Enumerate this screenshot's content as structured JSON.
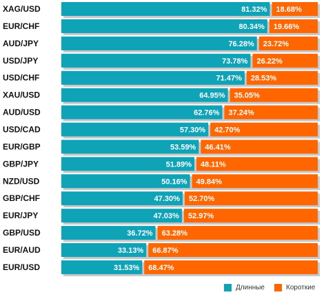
{
  "chart_data": {
    "type": "bar",
    "orientation": "horizontal",
    "stacked": true,
    "categories": [
      "XAG/USD",
      "EUR/CHF",
      "AUD/JPY",
      "USD/JPY",
      "USD/CHF",
      "XAU/USD",
      "AUD/USD",
      "USD/CAD",
      "EUR/GBP",
      "GBP/JPY",
      "NZD/USD",
      "GBP/CHF",
      "EUR/JPY",
      "GBP/USD",
      "EUR/AUD",
      "EUR/USD"
    ],
    "series": [
      {
        "name": "Длинные",
        "color": "#0fa3b8",
        "values": [
          81.32,
          80.34,
          76.28,
          73.78,
          71.47,
          64.95,
          62.76,
          57.3,
          53.59,
          51.89,
          50.16,
          47.3,
          47.03,
          36.72,
          33.13,
          31.53
        ],
        "labels": [
          "81.32%",
          "80.34%",
          "76.28%",
          "73.78%",
          "71.47%",
          "64.95%",
          "62.76%",
          "57.30%",
          "53.59%",
          "51.89%",
          "50.16%",
          "47.30%",
          "47.03%",
          "36.72%",
          "33.13%",
          "31.53%"
        ]
      },
      {
        "name": "Короткие",
        "color": "#ff6600",
        "values": [
          18.68,
          19.66,
          23.72,
          26.22,
          28.53,
          35.05,
          37.24,
          42.7,
          46.41,
          48.11,
          49.84,
          52.7,
          52.97,
          63.28,
          66.87,
          68.47
        ],
        "labels": [
          "18.68%",
          "19.66%",
          "23.72%",
          "26.22%",
          "28.53%",
          "35.05%",
          "37.24%",
          "42.70%",
          "46.41%",
          "48.11%",
          "49.84%",
          "52.70%",
          "52.97%",
          "63.28%",
          "66.87%",
          "68.47%"
        ]
      }
    ],
    "xlim": [
      0,
      100
    ],
    "grid": false,
    "legend_position": "bottom-right"
  }
}
